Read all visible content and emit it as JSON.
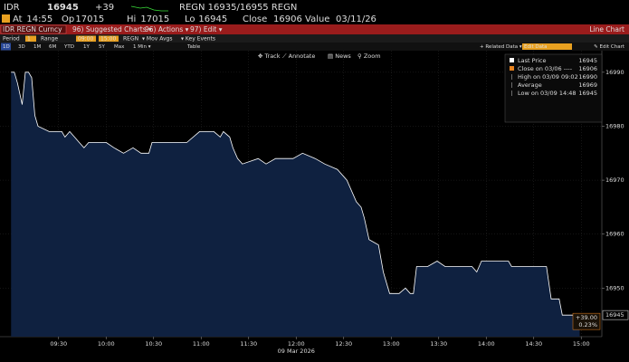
{
  "header": {
    "ticker": "IDR",
    "last": 16945,
    "change": "+39",
    "quote": "REGN 16935/16955 REGN"
  },
  "stats": [
    {
      "label": "At",
      "value": "14:55"
    },
    {
      "label": "Op",
      "value": 17015
    },
    {
      "label": "Hi",
      "value": 17015
    },
    {
      "label": "Lo",
      "value": 16945
    },
    {
      "label": "Close",
      "value": 16906
    },
    {
      "label": "Value",
      "value": "03/11/26"
    }
  ],
  "menu": {
    "security": "IDR REGN Curncy",
    "items": [
      "96) Suggested Charts ▾",
      "96) Actions ▾",
      "97) Edit ▾"
    ],
    "chart_label": "Line Chart"
  },
  "settings": {
    "period_label": "Period",
    "period": "1",
    "range_label": "Range",
    "range_start": "09:00",
    "range_end": "15:00",
    "source": "REGN",
    "mov_avgs": "▾ Mov Avgs",
    "key_events": "▾ Key Events"
  },
  "timeframes": [
    "1D",
    "3D",
    "1M",
    "6M",
    "YTD",
    "1Y",
    "5Y",
    "Max",
    "1 Min ▾",
    "Table"
  ],
  "related": "+ Related Data ▾",
  "edit_data": "Edit Data",
  "edit_chart": "✎ Edit Chart",
  "tools": [
    "✥ Track",
    "⟋ Annotate",
    "▤ News",
    "⚲ Zoom"
  ],
  "chart_data": {
    "type": "line",
    "date_label": "09 Mar 2026",
    "x": [
      "09:00",
      "09:02",
      "09:04",
      "09:07",
      "09:09",
      "09:11",
      "09:13",
      "09:15",
      "09:17",
      "09:24",
      "09:32",
      "09:34",
      "09:37",
      "09:40",
      "09:43",
      "09:46",
      "09:49",
      "10:00",
      "10:05",
      "10:11",
      "10:17",
      "10:22",
      "10:27",
      "10:29",
      "10:51",
      "10:59",
      "11:08",
      "11:12",
      "11:14",
      "11:18",
      "11:20",
      "11:23",
      "11:26",
      "11:36",
      "11:41",
      "11:47",
      "11:58",
      "12:04",
      "12:12",
      "12:18",
      "12:26",
      "12:32",
      "12:38",
      "12:41",
      "12:43",
      "12:46",
      "12:52",
      "12:55",
      "12:59",
      "13:05",
      "13:09",
      "13:12",
      "13:14",
      "13:16",
      "13:23",
      "13:29",
      "13:34",
      "13:51",
      "13:54",
      "13:57",
      "14:14",
      "14:16",
      "14:38",
      "14:41",
      "14:46",
      "14:48",
      "14:59"
    ],
    "series": [
      {
        "name": "Last Price",
        "color": "#ffffff",
        "fill": "#0f2140",
        "values": [
          16990,
          16990,
          16988,
          16984,
          16990,
          16990,
          16989,
          16982,
          16980,
          16979,
          16979,
          16978,
          16979,
          16978,
          16977,
          16976,
          16977,
          16977,
          16976,
          16975,
          16976,
          16975,
          16975,
          16977,
          16977,
          16979,
          16979,
          16978,
          16979,
          16978,
          16976,
          16974,
          16973,
          16974,
          16973,
          16974,
          16974,
          16975,
          16974,
          16973,
          16972,
          16970,
          16966,
          16965,
          16963,
          16959,
          16958,
          16953,
          16949,
          16949,
          16950,
          16949,
          16949,
          16954,
          16954,
          16955,
          16954,
          16954,
          16953,
          16955,
          16955,
          16954,
          16954,
          16948,
          16948,
          16945,
          16945
        ]
      }
    ],
    "legend": [
      {
        "label": "Close on 03/06 ----",
        "value": 16906,
        "color": "#e8821e"
      },
      {
        "label": "High on 03/09 09:02",
        "value": 16990
      },
      {
        "label": "Average",
        "value": 16969
      },
      {
        "label": "Low on 03/09 14:48",
        "value": 16945
      }
    ],
    "last_label": 16945,
    "change_label": "+39.00",
    "pct_label": "0.23%",
    "xlim": [
      "08:53",
      "15:13"
    ],
    "xticks": [
      "09:30",
      "10:00",
      "10:30",
      "11:00",
      "11:30",
      "12:00",
      "12:30",
      "13:00",
      "13:30",
      "14:00",
      "14:30",
      "15:00"
    ],
    "ylim": [
      16941,
      16994
    ],
    "yticks": [
      16950,
      16960,
      16970,
      16980,
      16990
    ],
    "grid": true
  }
}
